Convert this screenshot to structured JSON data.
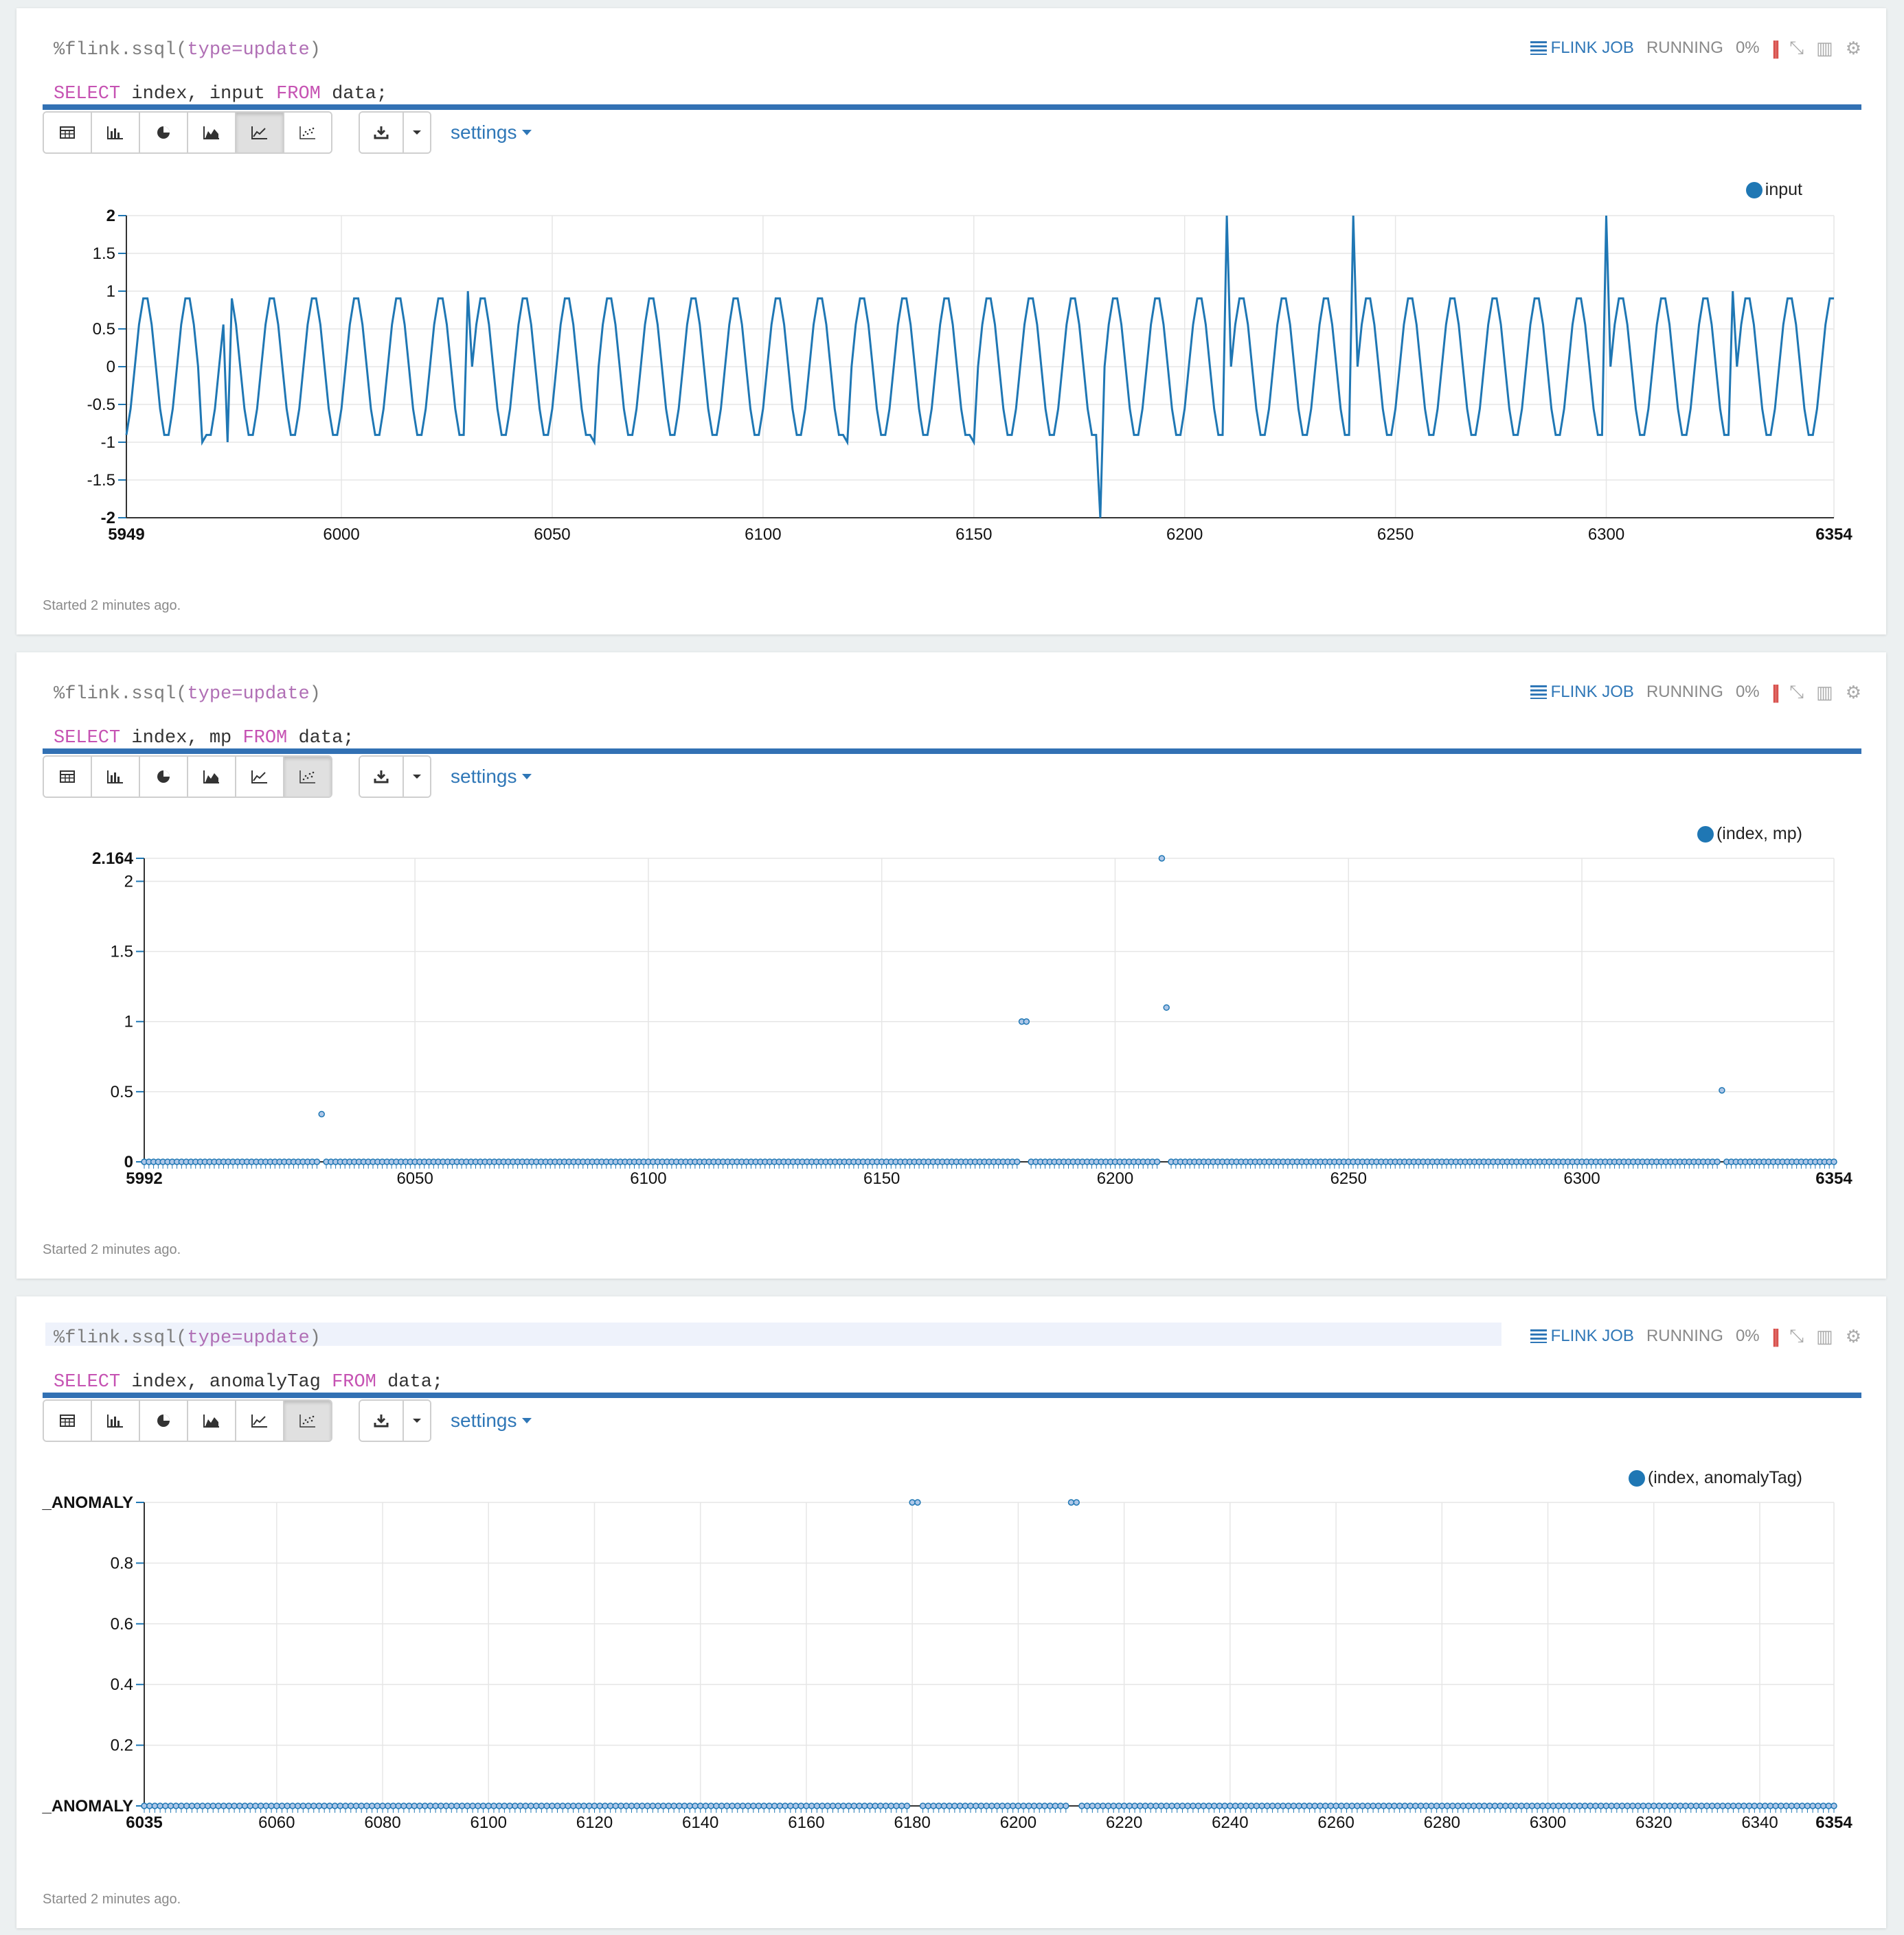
{
  "paragraphs": [
    {
      "code_line1_prefix": "%flink.ssql(",
      "code_line1_param": "type=update",
      "code_line1_suffix": ")",
      "code_kw_select": "SELECT",
      "code_cols": " index, input ",
      "code_kw_from": "FROM",
      "code_table": " data;",
      "job_label": "FLINK JOB",
      "status": "RUNNING",
      "percent": "0%",
      "settings_label": "settings",
      "started": "Started 2 minutes ago.",
      "legend": "input",
      "active_view": "line"
    },
    {
      "code_line1_prefix": "%flink.ssql(",
      "code_line1_param": "type=update",
      "code_line1_suffix": ")",
      "code_kw_select": "SELECT",
      "code_cols": " index, mp ",
      "code_kw_from": "FROM",
      "code_table": " data;",
      "job_label": "FLINK JOB",
      "status": "RUNNING",
      "percent": "0%",
      "settings_label": "settings",
      "started": "Started 2 minutes ago.",
      "legend": "(index, mp)",
      "active_view": "scatter"
    },
    {
      "code_line1_prefix": "%flink.ssql(",
      "code_line1_param": "type=update",
      "code_line1_suffix": ")",
      "code_kw_select": "SELECT",
      "code_cols": " index, anomalyTag ",
      "code_kw_from": "FROM",
      "code_table": " data;",
      "job_label": "FLINK JOB",
      "status": "RUNNING",
      "percent": "0%",
      "settings_label": "settings",
      "started": "Started 2 minutes ago.",
      "legend": "(index, anomalyTag)",
      "active_view": "scatter"
    }
  ],
  "icons": {
    "view_buttons": [
      "table-icon",
      "bar-chart-icon",
      "pie-chart-icon",
      "area-chart-icon",
      "line-chart-icon",
      "scatter-chart-icon"
    ],
    "download": "download-icon",
    "caret": "caret-down-icon",
    "job": "flink-job-icon",
    "status_icons": [
      "stop-icon",
      "collapse-icon",
      "book-icon",
      "gear-icon"
    ]
  },
  "colors": {
    "series": "#1f77b4",
    "link": "#2f77b7",
    "progress": "#3271b4",
    "stop": "#d9534f"
  },
  "chart_data": [
    {
      "type": "line",
      "title": "",
      "xlabel": "",
      "ylabel": "",
      "x_range": [
        5949,
        6354
      ],
      "ylim": [
        -2,
        2
      ],
      "xticks": [
        "5949",
        "6000",
        "6050",
        "6100",
        "6150",
        "6200",
        "6250",
        "6300",
        "6354"
      ],
      "yticks": [
        "2",
        "1.5",
        "1",
        "0.5",
        "0",
        "-0.5",
        "-1",
        "-1.5",
        "-2"
      ],
      "grid": true,
      "legend": "top-right",
      "series": [
        {
          "name": "input",
          "pattern": "sine wave, amplitude 0.95, period 10 samples",
          "anomalies": [
            {
              "x": 5967,
              "y": -1.0
            },
            {
              "x": 5973,
              "y": -1.0
            },
            {
              "x": 6030,
              "y": 1.0
            },
            {
              "x": 6060,
              "y": -1.0
            },
            {
              "x": 6120,
              "y": -1.0
            },
            {
              "x": 6150,
              "y": -1.0
            },
            {
              "x": 6180,
              "y": -2.0
            },
            {
              "x": 6210,
              "y": 2.0
            },
            {
              "x": 6240,
              "y": 2.0
            },
            {
              "x": 6300,
              "y": 2.0
            },
            {
              "x": 6330,
              "y": 1.0
            }
          ]
        }
      ]
    },
    {
      "type": "scatter",
      "title": "",
      "xlabel": "",
      "ylabel": "",
      "x_range": [
        5992,
        6354
      ],
      "ylim": [
        0,
        2.164
      ],
      "xticks": [
        "5992",
        "6050",
        "6100",
        "6150",
        "6200",
        "6250",
        "6300",
        "6354"
      ],
      "yticks": [
        "2.164",
        "2",
        "1.5",
        "1",
        "0.5",
        "0"
      ],
      "grid": true,
      "legend": "top-right",
      "series": [
        {
          "name": "(index, mp)",
          "baseline": 0,
          "points": [
            {
              "x": 6030,
              "y": 0.34
            },
            {
              "x": 6180,
              "y": 1.0
            },
            {
              "x": 6181,
              "y": 1.0
            },
            {
              "x": 6210,
              "y": 2.164
            },
            {
              "x": 6211,
              "y": 1.1
            },
            {
              "x": 6330,
              "y": 0.51
            }
          ]
        }
      ]
    },
    {
      "type": "scatter",
      "title": "",
      "xlabel": "",
      "ylabel": "",
      "x_range": [
        6035,
        6354
      ],
      "ylim": [
        0,
        1
      ],
      "xticks": [
        "6035",
        "6060",
        "6080",
        "6100",
        "6120",
        "6140",
        "6160",
        "6180",
        "6200",
        "6220",
        "6240",
        "6260",
        "6280",
        "6300",
        "6320",
        "6340",
        "6354"
      ],
      "yticks": [
        "_ANOMALY",
        "0.8",
        "0.6",
        "0.4",
        "0.2",
        "_ANOMALY"
      ],
      "grid": true,
      "legend": "top-right",
      "series": [
        {
          "name": "(index, anomalyTag)",
          "baseline": 0,
          "points": [
            {
              "x": 6180,
              "y": 1
            },
            {
              "x": 6181,
              "y": 1
            },
            {
              "x": 6210,
              "y": 1
            },
            {
              "x": 6211,
              "y": 1
            }
          ]
        }
      ]
    }
  ]
}
